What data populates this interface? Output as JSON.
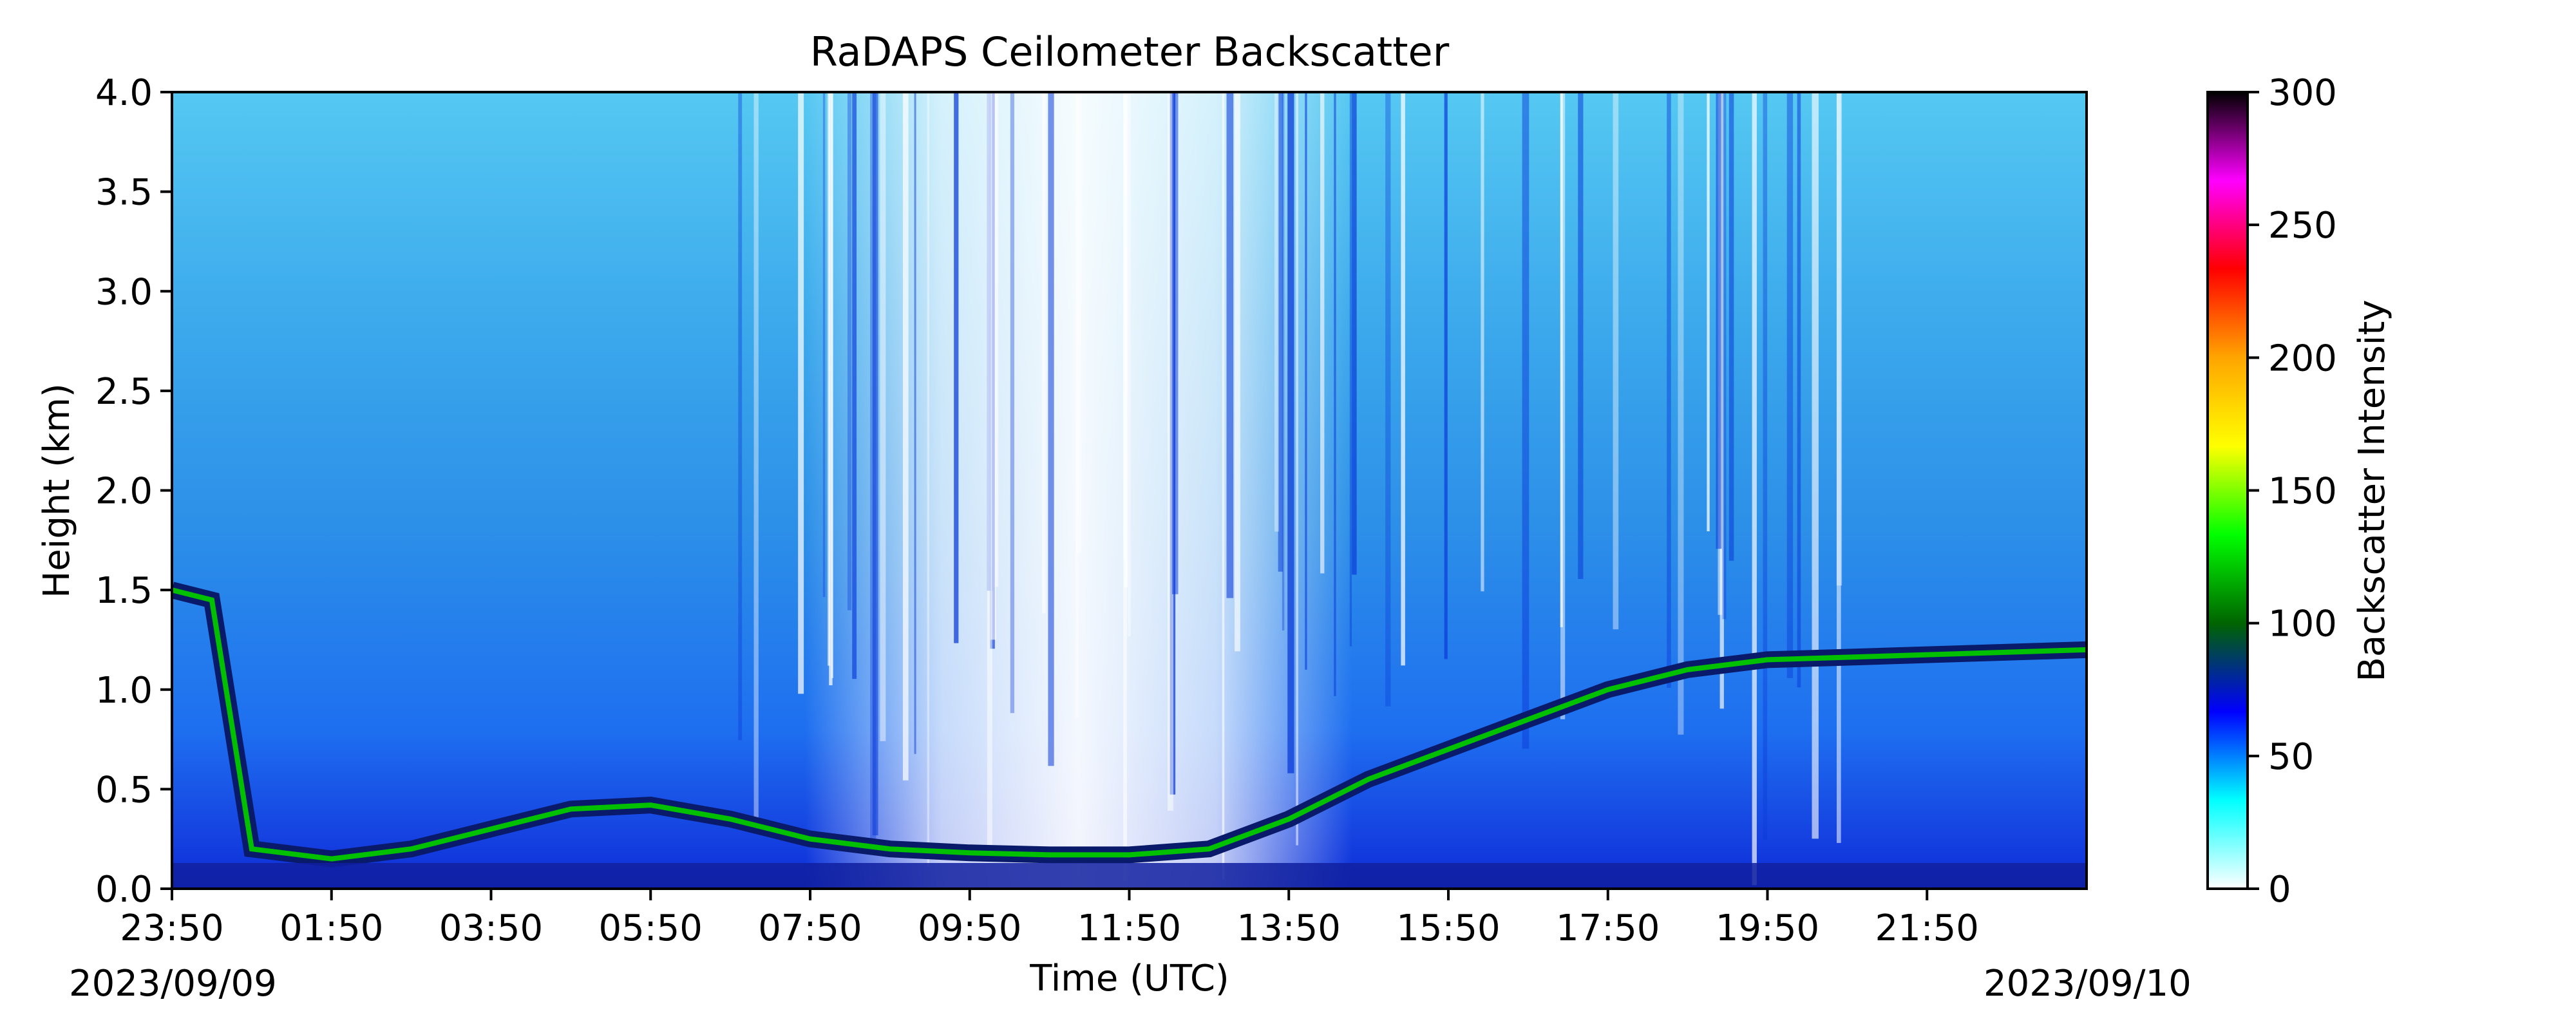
{
  "chart_data": {
    "type": "heatmap",
    "title": "RaDAPS Ceilometer Backscatter",
    "xlabel": "Time (UTC)",
    "ylabel": "Height (km)",
    "colorbar_label": "Backscatter Intensity",
    "x_ticks": [
      "23:50",
      "01:50",
      "03:50",
      "05:50",
      "07:50",
      "09:50",
      "11:50",
      "13:50",
      "15:50",
      "17:50",
      "19:50",
      "21:50"
    ],
    "x_tick_hours": [
      0,
      2,
      4,
      6,
      8,
      10,
      12,
      14,
      16,
      18,
      20,
      22
    ],
    "xlim_hours": [
      0,
      24
    ],
    "y_ticks": [
      "0.0",
      "0.5",
      "1.0",
      "1.5",
      "2.0",
      "2.5",
      "3.0",
      "3.5",
      "4.0"
    ],
    "ylim": [
      0,
      4
    ],
    "colorbar_ticks": [
      "0",
      "50",
      "100",
      "150",
      "200",
      "250",
      "300"
    ],
    "clim": [
      0,
      300
    ],
    "start_date": "2023/09/09",
    "end_date": "2023/09/10",
    "colormap": [
      "#ffffff",
      "#00ffff",
      "#0000ff",
      "#006400",
      "#00ff00",
      "#ffff00",
      "#ffa500",
      "#ff0000",
      "#ff00ff",
      "#000000"
    ],
    "layer_top_km": [
      [
        0.0,
        1.5
      ],
      [
        0.5,
        1.45
      ],
      [
        1.0,
        0.2
      ],
      [
        2.0,
        0.15
      ],
      [
        3.0,
        0.2
      ],
      [
        4.0,
        0.3
      ],
      [
        5.0,
        0.4
      ],
      [
        6.0,
        0.42
      ],
      [
        7.0,
        0.35
      ],
      [
        8.0,
        0.25
      ],
      [
        9.0,
        0.2
      ],
      [
        10.0,
        0.18
      ],
      [
        11.0,
        0.17
      ],
      [
        12.0,
        0.17
      ],
      [
        13.0,
        0.2
      ],
      [
        14.0,
        0.35
      ],
      [
        15.0,
        0.55
      ],
      [
        16.0,
        0.7
      ],
      [
        17.0,
        0.85
      ],
      [
        18.0,
        1.0
      ],
      [
        19.0,
        1.1
      ],
      [
        20.0,
        1.15
      ],
      [
        24.0,
        1.2
      ]
    ]
  }
}
